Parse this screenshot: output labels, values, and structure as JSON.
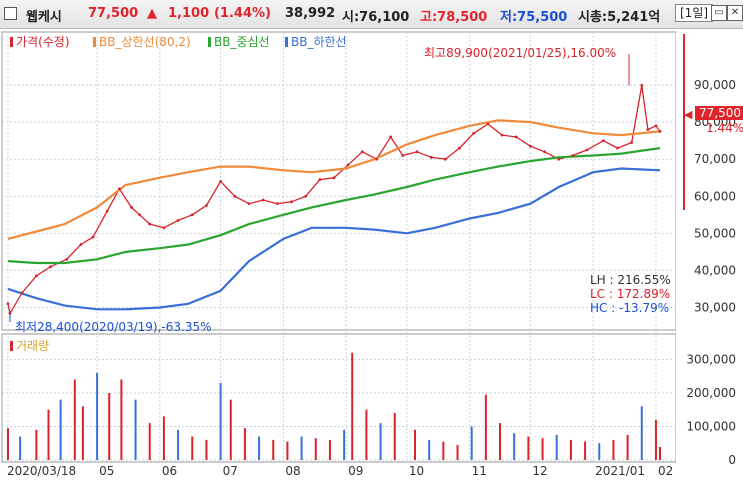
{
  "header": {
    "name": "웹케시",
    "price": "77,500",
    "arrow": "▲",
    "change": "1,100",
    "change_pct": "(1.44%)",
    "volume": "38,992",
    "open": "시:76,100",
    "high": "고:78,500",
    "low": "저:75,500",
    "cap": "시총:5,241억",
    "period": "[1일]",
    "colors": {
      "up": "#e0242b",
      "down": "#1c4fd8",
      "high": "#e0242b",
      "low": "#1c4fd8"
    }
  },
  "legend": [
    {
      "label": "가격(수정)",
      "color": "#d9232b"
    },
    {
      "label": "BB_상한선(80,2)",
      "color": "#f08a39"
    },
    {
      "label": "BB_중심선",
      "color": "#2aa52f"
    },
    {
      "label": "BB_하한선",
      "color": "#3b6fd8"
    }
  ],
  "volume_legend": {
    "label": "거래량",
    "color": "#d9232b"
  },
  "annotations": {
    "max": "최고89,900(2021/01/25),16.00%",
    "min": "최저28,400(2020/03/19),-63.35%",
    "lh": "LH  :  216.55%",
    "lc": "LC  :  172.89%",
    "hc": "HC  :  -13.79%",
    "last_price": "77,500",
    "last_pct": "1.44%"
  },
  "chart_data": [
    {
      "type": "line",
      "title": "",
      "xlabel": "",
      "ylabel": "",
      "ylim": [
        25000,
        100000
      ],
      "y_ticks": [
        30000,
        40000,
        50000,
        60000,
        70000,
        80000,
        90000
      ],
      "y_tick_labels": [
        "30,000",
        "40,000",
        "50,000",
        "60,000",
        "70,000",
        "80,000",
        "90,000"
      ],
      "x_tick_labels": [
        "2020/03/18",
        "05",
        "06",
        "07",
        "08",
        "09",
        "10",
        "11",
        "12",
        "2021/01",
        "02"
      ],
      "x_tick_dates": [
        "2020-03-18",
        "2020-05-01",
        "2020-06-01",
        "2020-07-01",
        "2020-08-01",
        "2020-09-01",
        "2020-10-01",
        "2020-11-01",
        "2020-12-01",
        "2021-01-01",
        "2021-02-01"
      ],
      "grid": true,
      "series": [
        {
          "name": "가격(수정)",
          "x": [
            "2020-03-18",
            "2020-03-19",
            "2020-03-25",
            "2020-04-01",
            "2020-04-08",
            "2020-04-16",
            "2020-04-23",
            "2020-04-29",
            "2020-05-06",
            "2020-05-12",
            "2020-05-18",
            "2020-05-22",
            "2020-05-27",
            "2020-06-03",
            "2020-06-10",
            "2020-06-17",
            "2020-06-24",
            "2020-07-01",
            "2020-07-08",
            "2020-07-15",
            "2020-07-22",
            "2020-07-29",
            "2020-08-05",
            "2020-08-12",
            "2020-08-19",
            "2020-08-26",
            "2020-09-02",
            "2020-09-09",
            "2020-09-16",
            "2020-09-23",
            "2020-09-29",
            "2020-10-06",
            "2020-10-13",
            "2020-10-20",
            "2020-10-27",
            "2020-11-03",
            "2020-11-10",
            "2020-11-17",
            "2020-11-24",
            "2020-12-01",
            "2020-12-08",
            "2020-12-15",
            "2020-12-22",
            "2020-12-29",
            "2021-01-06",
            "2021-01-13",
            "2021-01-20",
            "2021-01-25",
            "2021-01-28",
            "2021-02-01",
            "2021-02-03"
          ],
          "values": [
            31000,
            28400,
            34000,
            38500,
            41000,
            43000,
            47000,
            49000,
            56000,
            62000,
            57000,
            55000,
            52500,
            51500,
            53500,
            55000,
            57500,
            64000,
            60000,
            58000,
            59000,
            58000,
            58500,
            60000,
            64500,
            65000,
            68500,
            72000,
            70000,
            76000,
            71000,
            72000,
            70500,
            70000,
            73000,
            77000,
            79500,
            76500,
            76000,
            73500,
            72000,
            70000,
            71000,
            72500,
            75000,
            73000,
            74500,
            89900,
            78000,
            79000,
            77500
          ],
          "color": "#d9232b"
        },
        {
          "name": "BB_상한선(80,2)",
          "x": [
            "2020-03-18",
            "2020-04-01",
            "2020-04-15",
            "2020-05-01",
            "2020-05-15",
            "2020-06-01",
            "2020-06-15",
            "2020-07-01",
            "2020-07-15",
            "2020-08-01",
            "2020-08-15",
            "2020-09-01",
            "2020-09-15",
            "2020-10-01",
            "2020-10-15",
            "2020-11-01",
            "2020-11-15",
            "2020-12-01",
            "2020-12-15",
            "2021-01-01",
            "2021-01-15",
            "2021-02-03"
          ],
          "values": [
            48500,
            50500,
            52500,
            57000,
            63000,
            65000,
            66500,
            68000,
            68000,
            67000,
            66500,
            67500,
            70000,
            74000,
            76500,
            79000,
            80500,
            80000,
            78500,
            77000,
            76500,
            77500
          ],
          "color": "#f08a39"
        },
        {
          "name": "BB_중심선",
          "x": [
            "2020-03-18",
            "2020-04-01",
            "2020-04-15",
            "2020-05-01",
            "2020-05-15",
            "2020-06-01",
            "2020-06-15",
            "2020-07-01",
            "2020-07-15",
            "2020-08-01",
            "2020-08-15",
            "2020-09-01",
            "2020-09-15",
            "2020-10-01",
            "2020-10-15",
            "2020-11-01",
            "2020-11-15",
            "2020-12-01",
            "2020-12-15",
            "2021-01-01",
            "2021-01-15",
            "2021-02-03"
          ],
          "values": [
            42500,
            42000,
            42000,
            43000,
            45000,
            46000,
            47000,
            49500,
            52500,
            55000,
            57000,
            59000,
            60500,
            62500,
            64500,
            66500,
            68000,
            69500,
            70500,
            71000,
            71500,
            73000
          ],
          "color": "#2aa52f"
        },
        {
          "name": "BB_하한선",
          "x": [
            "2020-03-18",
            "2020-04-01",
            "2020-04-15",
            "2020-05-01",
            "2020-05-15",
            "2020-06-01",
            "2020-06-15",
            "2020-07-01",
            "2020-07-15",
            "2020-08-01",
            "2020-08-15",
            "2020-09-01",
            "2020-09-15",
            "2020-10-01",
            "2020-10-15",
            "2020-11-01",
            "2020-11-15",
            "2020-12-01",
            "2020-12-15",
            "2021-01-01",
            "2021-01-15",
            "2021-02-03"
          ],
          "values": [
            35000,
            32500,
            30500,
            29500,
            29500,
            30000,
            31000,
            34500,
            42500,
            48500,
            51500,
            51500,
            51000,
            50000,
            51500,
            54000,
            55500,
            58000,
            62500,
            66500,
            67500,
            67000
          ],
          "color": "#3b6fd8"
        }
      ]
    },
    {
      "type": "bar",
      "title": "",
      "xlabel": "",
      "ylabel": "",
      "ylim": [
        0,
        340000
      ],
      "y_ticks": [
        0,
        100000,
        200000,
        300000
      ],
      "y_tick_labels": [
        "0",
        "100,000",
        "200,000",
        "300,000"
      ],
      "series": [
        {
          "name": "거래량",
          "x": [
            "2020-03-18",
            "2020-03-24",
            "2020-04-01",
            "2020-04-07",
            "2020-04-13",
            "2020-04-20",
            "2020-04-24",
            "2020-05-01",
            "2020-05-07",
            "2020-05-13",
            "2020-05-20",
            "2020-05-27",
            "2020-06-03",
            "2020-06-10",
            "2020-06-17",
            "2020-06-24",
            "2020-07-01",
            "2020-07-06",
            "2020-07-13",
            "2020-07-20",
            "2020-07-27",
            "2020-08-03",
            "2020-08-10",
            "2020-08-17",
            "2020-08-24",
            "2020-08-31",
            "2020-09-04",
            "2020-09-11",
            "2020-09-18",
            "2020-09-25",
            "2020-10-05",
            "2020-10-12",
            "2020-10-19",
            "2020-10-26",
            "2020-11-02",
            "2020-11-09",
            "2020-11-16",
            "2020-11-23",
            "2020-11-30",
            "2020-12-07",
            "2020-12-14",
            "2020-12-21",
            "2020-12-28",
            "2021-01-04",
            "2021-01-11",
            "2021-01-18",
            "2021-01-25",
            "2021-02-01",
            "2021-02-03"
          ],
          "values": [
            95000,
            70000,
            90000,
            150000,
            180000,
            240000,
            160000,
            260000,
            200000,
            240000,
            180000,
            110000,
            130000,
            90000,
            70000,
            60000,
            230000,
            180000,
            95000,
            70000,
            60000,
            55000,
            70000,
            65000,
            60000,
            90000,
            320000,
            150000,
            110000,
            140000,
            90000,
            60000,
            55000,
            45000,
            100000,
            195000,
            110000,
            80000,
            70000,
            65000,
            75000,
            60000,
            55000,
            50000,
            60000,
            75000,
            160000,
            120000,
            38992
          ],
          "color": "#d9232b"
        }
      ]
    }
  ]
}
